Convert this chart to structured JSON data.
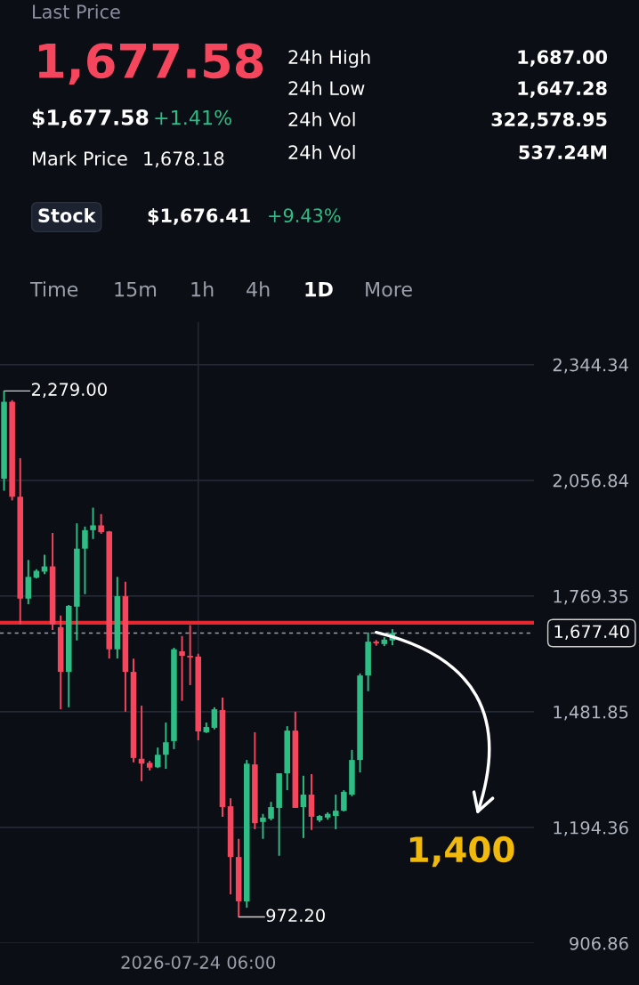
{
  "chart_data": {
    "type": "candlestick",
    "categories": [
      null,
      null,
      null,
      null,
      null,
      null,
      null,
      null,
      null,
      null,
      null,
      null,
      null,
      null,
      null,
      null,
      null,
      null,
      null,
      null,
      null,
      null,
      null,
      null,
      "2026-07-24 06:00",
      null,
      null,
      null,
      null,
      null,
      null,
      null,
      null,
      null,
      null,
      null,
      null,
      null,
      null,
      null,
      null,
      null,
      null,
      null,
      null,
      null,
      null,
      null,
      null,
      null,
      null,
      null,
      null,
      null,
      null,
      null,
      null,
      null,
      null,
      null,
      null,
      null,
      null,
      null,
      null,
      null
    ],
    "ohlc": [
      [
        2061,
        2279,
        2031,
        2252
      ],
      [
        2252,
        2256,
        2007,
        2016
      ],
      [
        2016,
        2112,
        1699,
        1763
      ],
      [
        1763,
        1859,
        1749,
        1817
      ],
      [
        1815,
        1836,
        1813,
        1832
      ],
      [
        1830,
        1872,
        1824,
        1843
      ],
      [
        1843,
        1926,
        1685,
        1699
      ],
      [
        1692,
        1721,
        1488,
        1581
      ],
      [
        1581,
        1747,
        1493,
        1745
      ],
      [
        1743,
        1950,
        1659,
        1887
      ],
      [
        1887,
        1942,
        1774,
        1933
      ],
      [
        1933,
        1989,
        1911,
        1945
      ],
      [
        1945,
        1973,
        1924,
        1928
      ],
      [
        1930,
        1931,
        1614,
        1637
      ],
      [
        1637,
        1817,
        1614,
        1769
      ],
      [
        1769,
        1805,
        1482,
        1581
      ],
      [
        1581,
        1614,
        1356,
        1367
      ],
      [
        1365,
        1497,
        1309,
        1353
      ],
      [
        1355,
        1360,
        1336,
        1343
      ],
      [
        1344,
        1393,
        1342,
        1375
      ],
      [
        1375,
        1455,
        1340,
        1406
      ],
      [
        1409,
        1641,
        1389,
        1637
      ],
      [
        1632,
        1670,
        1509,
        1621
      ],
      [
        1621,
        1697,
        1548,
        1617
      ],
      [
        1619,
        1626,
        1411,
        1433
      ],
      [
        1431,
        1455,
        1429,
        1444
      ],
      [
        1442,
        1493,
        1438,
        1488
      ],
      [
        1486,
        1517,
        1221,
        1245
      ],
      [
        1247,
        1267,
        1028,
        1121
      ],
      [
        1121,
        1166,
        972.2,
        1011
      ],
      [
        1011,
        1362,
        995,
        1353
      ],
      [
        1351,
        1431,
        1190,
        1205
      ],
      [
        1208,
        1228,
        1166,
        1219
      ],
      [
        1216,
        1258,
        1212,
        1245
      ],
      [
        1243,
        1329,
        1124,
        1329
      ],
      [
        1329,
        1446,
        1287,
        1435
      ],
      [
        1435,
        1482,
        1243,
        1243
      ],
      [
        1245,
        1323,
        1168,
        1276
      ],
      [
        1276,
        1327,
        1188,
        1221
      ],
      [
        1212,
        1225,
        1208,
        1223
      ],
      [
        1219,
        1232,
        1214,
        1228
      ],
      [
        1223,
        1276,
        1190,
        1236
      ],
      [
        1236,
        1287,
        1234,
        1283
      ],
      [
        1276,
        1387,
        1272,
        1362
      ],
      [
        1362,
        1577,
        1331,
        1572
      ],
      [
        1572,
        1679,
        1533,
        1656
      ],
      [
        1656,
        1660,
        1646,
        1652
      ],
      [
        1650,
        1667,
        1645,
        1661
      ],
      [
        1659,
        1687,
        1647.28,
        1677.4
      ],
      null,
      null,
      null,
      null,
      null,
      null,
      null,
      null,
      null,
      null,
      null,
      null,
      null,
      null,
      null,
      null,
      null
    ],
    "colors": [
      "#2ebd85",
      "#f6465d",
      "#f6465d",
      "#2ebd85",
      "#2ebd85",
      "#2ebd85",
      "#f6465d",
      "#f6465d",
      "#2ebd85",
      "#2ebd85",
      "#2ebd85",
      "#2ebd85",
      "#f6465d",
      "#f6465d",
      "#2ebd85",
      "#f6465d",
      "#f6465d",
      "#f6465d",
      "#f6465d",
      "#2ebd85",
      "#2ebd85",
      "#2ebd85",
      "#f6465d",
      "#f6465d",
      "#f6465d",
      "#2ebd85",
      "#2ebd85",
      "#f6465d",
      "#f6465d",
      "#f6465d",
      "#2ebd85",
      "#f6465d",
      "#2ebd85",
      "#2ebd85",
      "#2ebd85",
      "#2ebd85",
      "#f6465d",
      "#2ebd85",
      "#f6465d",
      "#2ebd85",
      "#2ebd85",
      "#2ebd85",
      "#2ebd85",
      "#2ebd85",
      "#2ebd85",
      "#2ebd85",
      "#f6465d",
      "#2ebd85",
      "#2ebd85",
      null,
      null,
      null,
      null,
      null,
      null,
      null,
      null,
      null,
      null,
      null,
      null,
      null,
      null,
      null,
      null,
      null
    ],
    "ylim": [
      906.86,
      2450
    ],
    "yticks": [
      {
        "value": 906.86,
        "label": "906.86"
      },
      {
        "value": 1194.36,
        "label": "1,194.36"
      },
      {
        "value": 1481.85,
        "label": "1,481.85"
      },
      {
        "value": 1769.35,
        "label": "1,769.35"
      },
      {
        "value": 2056.84,
        "label": "2,056.84"
      },
      {
        "value": 2344.34,
        "label": "2,344.34"
      }
    ],
    "grid": true,
    "ref_lines": [
      {
        "axis": "y",
        "value": 1703,
        "color": "#e8262f",
        "line_style": "solid"
      },
      {
        "axis": "y",
        "value": 1677.4,
        "label": "1,677.40",
        "color": "#9aa0aa",
        "line_style": "dashed"
      }
    ],
    "annotations": [
      "Last Price",
      "1,677.58",
      "$1,677.58",
      "+1.41%",
      "Mark Price",
      "1,678.18",
      "24h High",
      "1,687.00",
      "24h Low",
      "1,647.28",
      "24h Vol",
      "322,578.95",
      "24h Vol",
      "537.24M",
      "Stock",
      "$1,676.41",
      "+9.43%",
      "Time",
      "15m",
      "1h",
      "4h",
      "1D",
      "More",
      "1,400",
      "2,279.00",
      "972.20"
    ]
  }
}
